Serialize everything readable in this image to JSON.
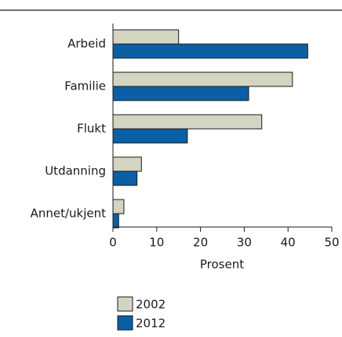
{
  "chart_data": {
    "type": "bar",
    "orientation": "horizontal",
    "categories": [
      "Arbeid",
      "Familie",
      "Flukt",
      "Utdanning",
      "Annet/ukjent"
    ],
    "series": [
      {
        "name": "2002",
        "color": "#d3d4c1",
        "values": [
          15,
          41,
          34,
          6.5,
          2.5
        ]
      },
      {
        "name": "2012",
        "color": "#0b5fa5",
        "values": [
          44.5,
          31,
          17,
          5.5,
          1.3
        ]
      }
    ],
    "xlabel": "Prosent",
    "xlim": [
      0,
      50
    ],
    "xticks": [
      0,
      10,
      20,
      30,
      40,
      50
    ],
    "grid": false
  }
}
